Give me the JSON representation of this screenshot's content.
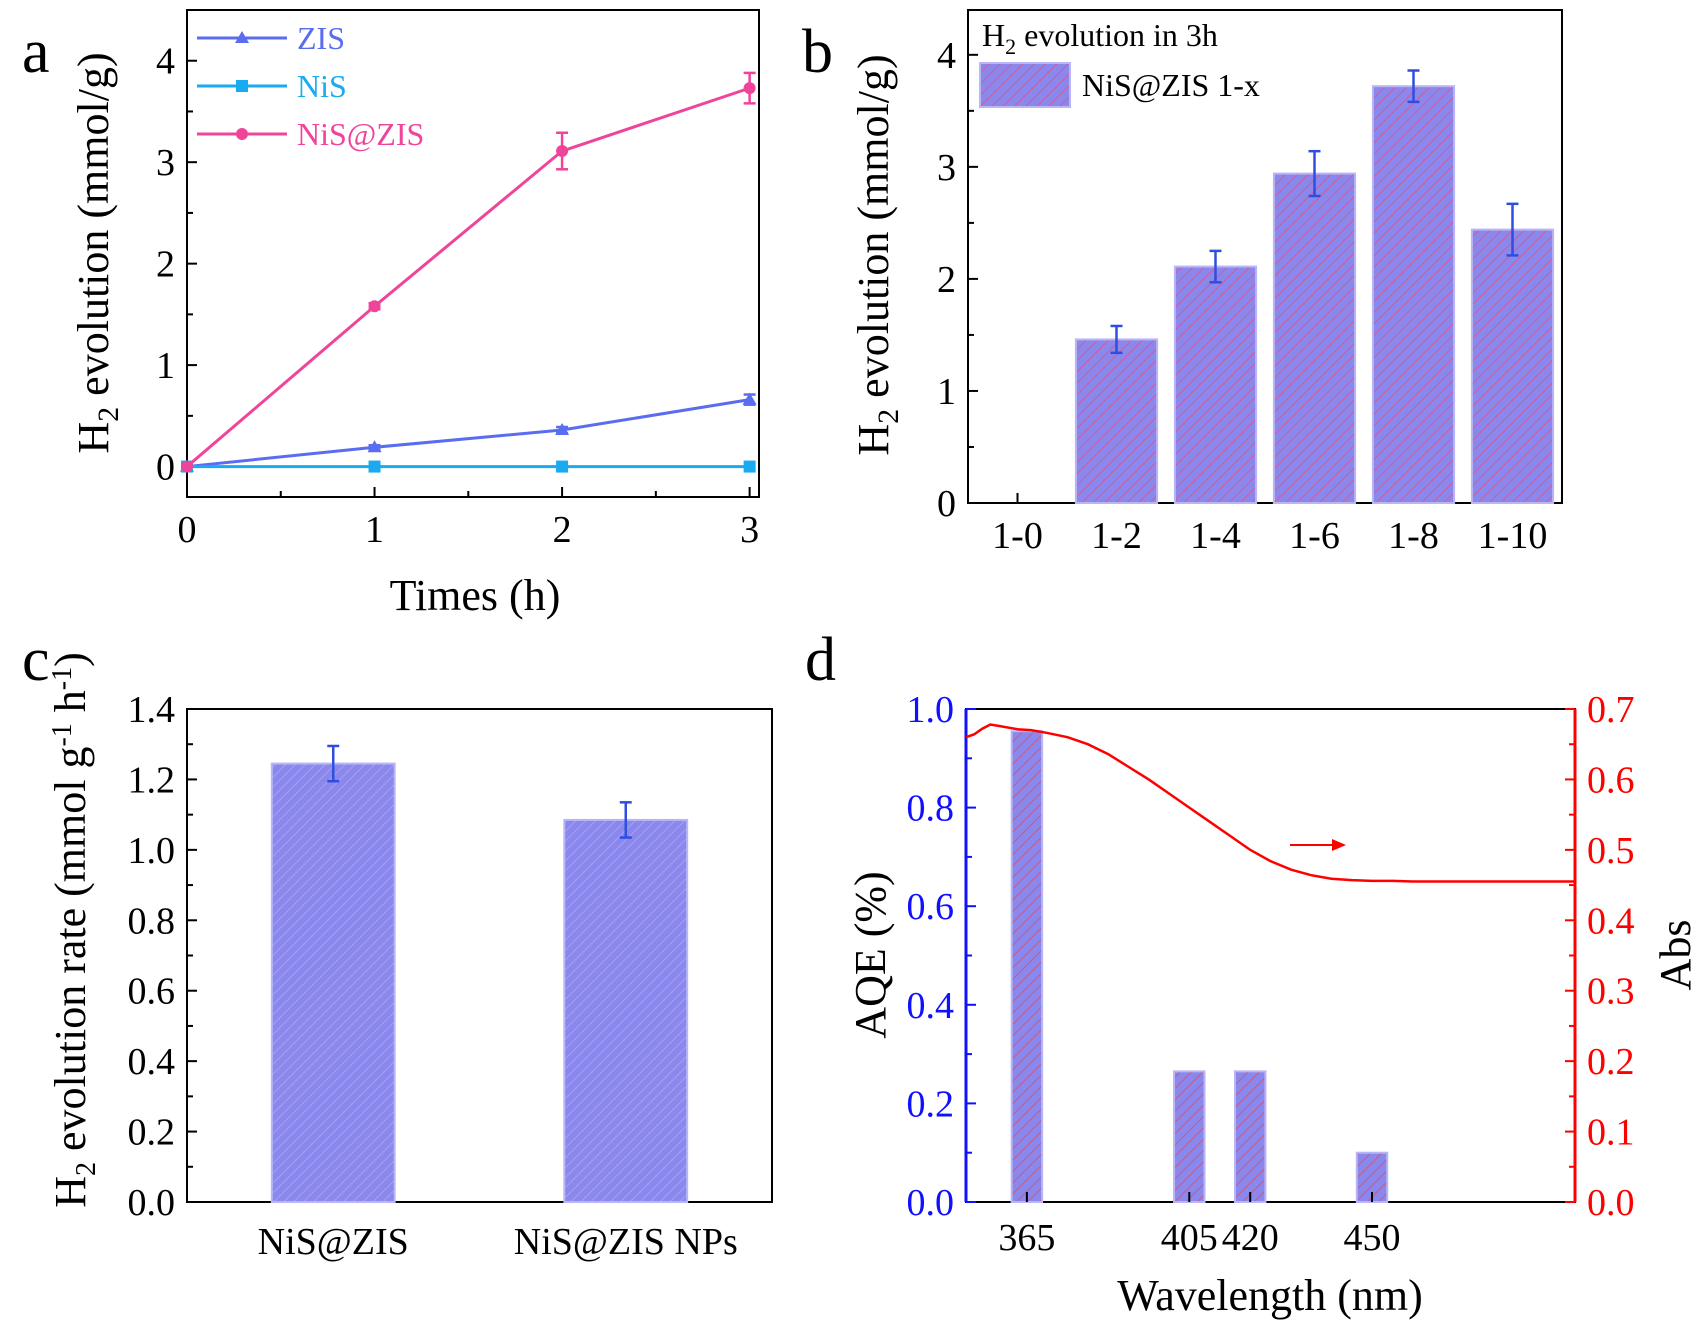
{
  "chart_data": [
    {
      "panel": "a",
      "type": "line",
      "xlabel": "Times (h)",
      "ylabel_main": "H",
      "ylabel_sub": "2",
      "ylabel_rest": " evolution (mmol/g)",
      "xlim": [
        0,
        3.05
      ],
      "ylim": [
        -0.3,
        4.5
      ],
      "xticks": [
        "0",
        "1",
        "2",
        "3"
      ],
      "yticks": [
        "0",
        "1",
        "2",
        "3",
        "4"
      ],
      "legend_position": "top-left",
      "series": [
        {
          "name": "ZIS",
          "color": "#5a6df0",
          "marker": "triangle",
          "x": [
            0,
            1,
            2,
            3
          ],
          "values": [
            0,
            0.19,
            0.36,
            0.66
          ],
          "errors": [
            0,
            0.02,
            0.03,
            0.05
          ]
        },
        {
          "name": "NiS",
          "color": "#1aaaf0",
          "marker": "square",
          "x": [
            0,
            1,
            2,
            3
          ],
          "values": [
            0,
            0,
            0,
            0
          ],
          "errors": [
            0,
            0,
            0,
            0
          ]
        },
        {
          "name": "NiS@ZIS",
          "color": "#f0449a",
          "marker": "circle",
          "x": [
            0,
            1,
            2,
            3
          ],
          "values": [
            0,
            1.58,
            3.11,
            3.73
          ],
          "errors": [
            0,
            0.03,
            0.18,
            0.15
          ]
        }
      ]
    },
    {
      "panel": "b",
      "type": "bar",
      "categories": [
        "1-0",
        "1-2",
        "1-4",
        "1-6",
        "1-8",
        "1-10"
      ],
      "values": [
        0,
        1.46,
        2.11,
        2.94,
        3.72,
        2.44
      ],
      "errors": [
        0,
        0.12,
        0.14,
        0.2,
        0.14,
        0.23
      ],
      "xlabel": "",
      "ylabel_main": "H",
      "ylabel_sub": "2",
      "ylabel_rest": " evolution (mmol/g)",
      "ylim": [
        0,
        4.4
      ],
      "yticks": [
        "0",
        "1",
        "2",
        "3",
        "4"
      ],
      "legend_title_main": "H",
      "legend_title_sub": "2",
      "legend_title_rest": " evolution in 3h",
      "legend_entry": "NiS@ZIS 1-x",
      "bar_fill": "#8a88ec",
      "hatch_color": "#d35a9a",
      "error_color": "#2f4ee0"
    },
    {
      "panel": "c",
      "type": "bar",
      "categories": [
        "NiS@ZIS",
        "NiS@ZIS NPs"
      ],
      "values": [
        1.245,
        1.085
      ],
      "errors": [
        0.05,
        0.05
      ],
      "xlabel": "",
      "ylabel_main": "H",
      "ylabel_sub": "2",
      "ylabel_rest": " evolution rate (mmol g",
      "ylabel_sup1": "-1",
      "ylabel_mid": " h",
      "ylabel_sup2": "-1",
      "ylabel_end": ")",
      "ylim": [
        0,
        1.4
      ],
      "yticks": [
        "0.0",
        "0.2",
        "0.4",
        "0.6",
        "0.8",
        "1.0",
        "1.2",
        "1.4"
      ],
      "bar_fill": "#8a88ec",
      "hatch_color": "#a99ef5",
      "error_color": "#2f4ee0"
    },
    {
      "panel": "d",
      "type": "bar",
      "xlabel": "Wavelength (nm)",
      "ylabel_left": "AQE (%)",
      "ylabel_right": "Abs",
      "xlim": [
        350,
        500
      ],
      "ylim_left": [
        0,
        1.0
      ],
      "ylim_right": [
        0,
        0.7
      ],
      "yticks_left": [
        "0.0",
        "0.2",
        "0.4",
        "0.6",
        "0.8",
        "1.0"
      ],
      "yticks_right": [
        "0.0",
        "0.1",
        "0.2",
        "0.3",
        "0.4",
        "0.5",
        "0.6",
        "0.7"
      ],
      "bars": {
        "categories": [
          "365",
          "405",
          "420",
          "450"
        ],
        "x": [
          365,
          405,
          420,
          450
        ],
        "values": [
          0.955,
          0.265,
          0.265,
          0.1
        ]
      },
      "abs_curve": {
        "x": [
          350,
          352,
          354,
          356,
          358,
          360,
          363,
          366,
          370,
          375,
          380,
          385,
          390,
          395,
          400,
          405,
          410,
          415,
          420,
          425,
          430,
          435,
          440,
          445,
          450,
          455,
          460,
          470,
          480,
          490,
          500
        ],
        "values": [
          0.66,
          0.664,
          0.672,
          0.678,
          0.676,
          0.674,
          0.671,
          0.67,
          0.666,
          0.66,
          0.65,
          0.636,
          0.618,
          0.6,
          0.58,
          0.56,
          0.54,
          0.52,
          0.5,
          0.484,
          0.472,
          0.464,
          0.459,
          0.457,
          0.456,
          0.456,
          0.455,
          0.455,
          0.455,
          0.455,
          0.455
        ]
      },
      "bar_fill": "#8a88ec",
      "hatch_color": "#c45a88",
      "left_color": "#1010ff",
      "right_color": "#ff0000"
    }
  ]
}
